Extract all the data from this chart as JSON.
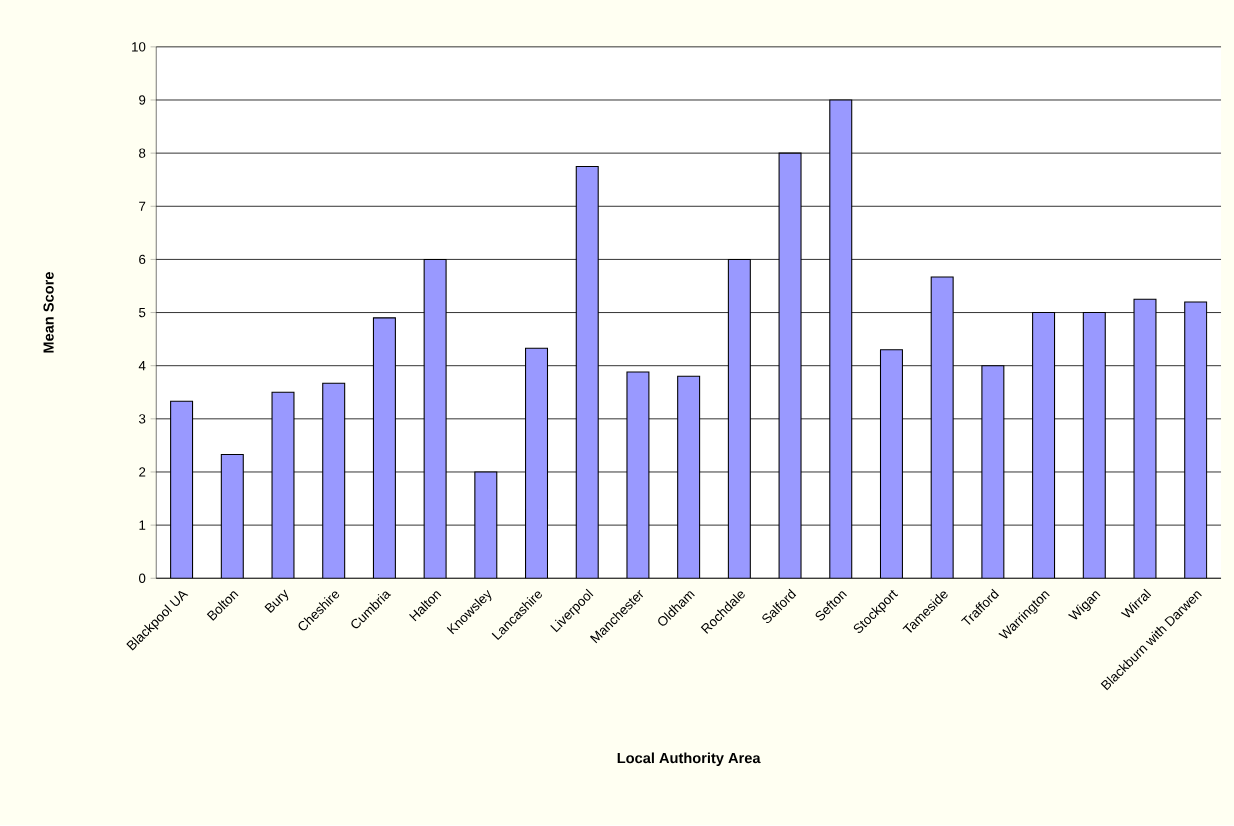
{
  "chart_data": {
    "type": "bar",
    "xlabel": "Local Authority Area",
    "ylabel": "Mean Score",
    "categories": [
      "Blackpool UA",
      "Bolton",
      "Bury",
      "Cheshire",
      "Cumbria",
      "Halton",
      "Knowsley",
      "Lancashire",
      "Liverpool",
      "Manchester",
      "Oldham",
      "Rochdale",
      "Salford",
      "Sefton",
      "Stockport",
      "Tameside",
      "Trafford",
      "Warrington",
      "Wigan",
      "Wirral",
      "Blackburn with Darwen"
    ],
    "values": [
      3.33,
      2.33,
      3.5,
      3.67,
      4.9,
      6,
      2,
      4.33,
      7.75,
      3.88,
      3.8,
      6,
      8,
      9,
      4.3,
      5.67,
      4,
      5,
      5,
      5.25,
      5.2
    ],
    "color": "#9999ff",
    "ylim": [
      0,
      10
    ],
    "yticks": [
      0,
      1,
      2,
      3,
      4,
      5,
      6,
      7,
      8,
      9,
      10
    ],
    "grid": "y"
  }
}
